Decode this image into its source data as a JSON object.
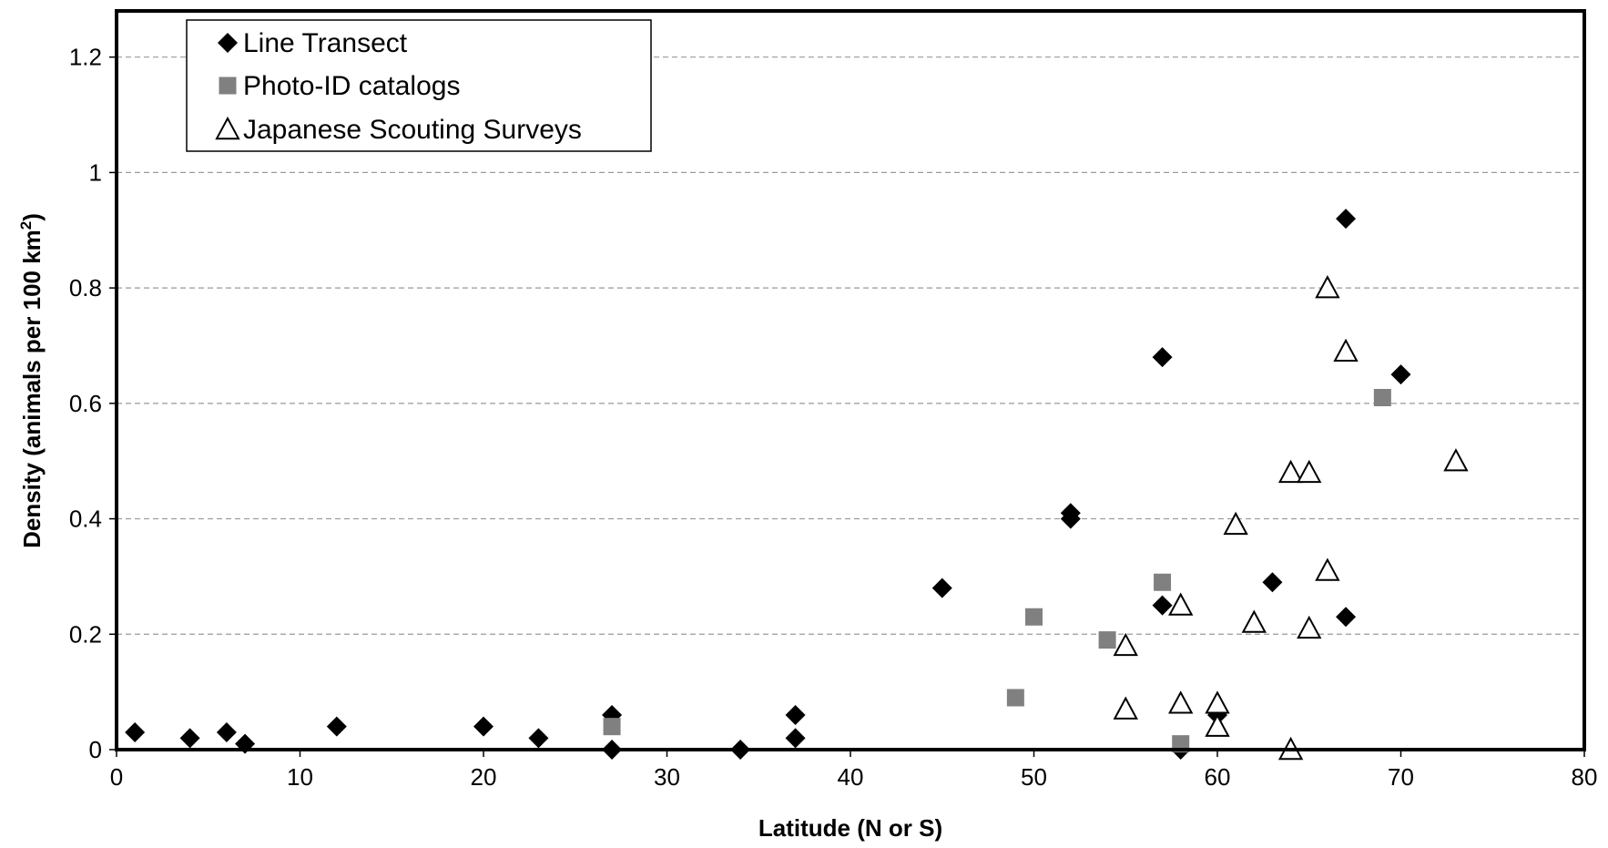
{
  "chart_data": {
    "type": "scatter",
    "title": "",
    "xlabel": "Latitude (N or S)",
    "ylabel_main": "Density (animals per 100 km",
    "ylabel_sup": "2",
    "ylabel_end": ")",
    "xlim": [
      0,
      80
    ],
    "ylim": [
      0,
      1.28
    ],
    "xticks": [
      0,
      10,
      20,
      30,
      40,
      50,
      60,
      70,
      80
    ],
    "yticks": [
      0,
      0.2,
      0.4,
      0.6,
      0.8,
      1,
      1.2
    ],
    "ytick_labels": [
      "0",
      "0.2",
      "0.4",
      "0.6",
      "0.8",
      "1",
      "1.2"
    ],
    "grid": "horizontal dashed",
    "legend_position": "top-left",
    "series": [
      {
        "name": "Line Transect",
        "marker": "diamond",
        "color": "#000000",
        "points": [
          [
            1,
            0.03
          ],
          [
            4,
            0.02
          ],
          [
            6,
            0.03
          ],
          [
            7,
            0.01
          ],
          [
            12,
            0.04
          ],
          [
            20,
            0.04
          ],
          [
            23,
            0.02
          ],
          [
            27,
            0.06
          ],
          [
            27,
            0.0
          ],
          [
            34,
            0.0
          ],
          [
            37,
            0.06
          ],
          [
            37,
            0.02
          ],
          [
            45,
            0.28
          ],
          [
            52,
            0.41
          ],
          [
            52,
            0.4
          ],
          [
            57,
            0.68
          ],
          [
            57,
            0.25
          ],
          [
            58,
            0.0
          ],
          [
            60,
            0.06
          ],
          [
            63,
            0.29
          ],
          [
            67,
            0.92
          ],
          [
            67,
            0.23
          ],
          [
            70,
            0.65
          ]
        ]
      },
      {
        "name": "Photo-ID catalogs",
        "marker": "square",
        "color": "#808080",
        "points": [
          [
            27,
            0.04
          ],
          [
            49,
            0.09
          ],
          [
            50,
            0.23
          ],
          [
            54,
            0.19
          ],
          [
            57,
            0.29
          ],
          [
            58,
            0.01
          ],
          [
            69,
            0.61
          ]
        ]
      },
      {
        "name": "Japanese Scouting Surveys",
        "marker": "triangle",
        "color": "#000000",
        "points": [
          [
            55,
            0.18
          ],
          [
            55,
            0.07
          ],
          [
            58,
            0.25
          ],
          [
            58,
            0.08
          ],
          [
            60,
            0.08
          ],
          [
            60,
            0.04
          ],
          [
            61,
            0.39
          ],
          [
            62,
            0.22
          ],
          [
            64,
            0.48
          ],
          [
            64,
            0.0
          ],
          [
            65,
            0.48
          ],
          [
            65,
            0.21
          ],
          [
            66,
            0.8
          ],
          [
            66,
            0.31
          ],
          [
            67,
            0.69
          ],
          [
            73,
            0.5
          ]
        ]
      }
    ]
  }
}
